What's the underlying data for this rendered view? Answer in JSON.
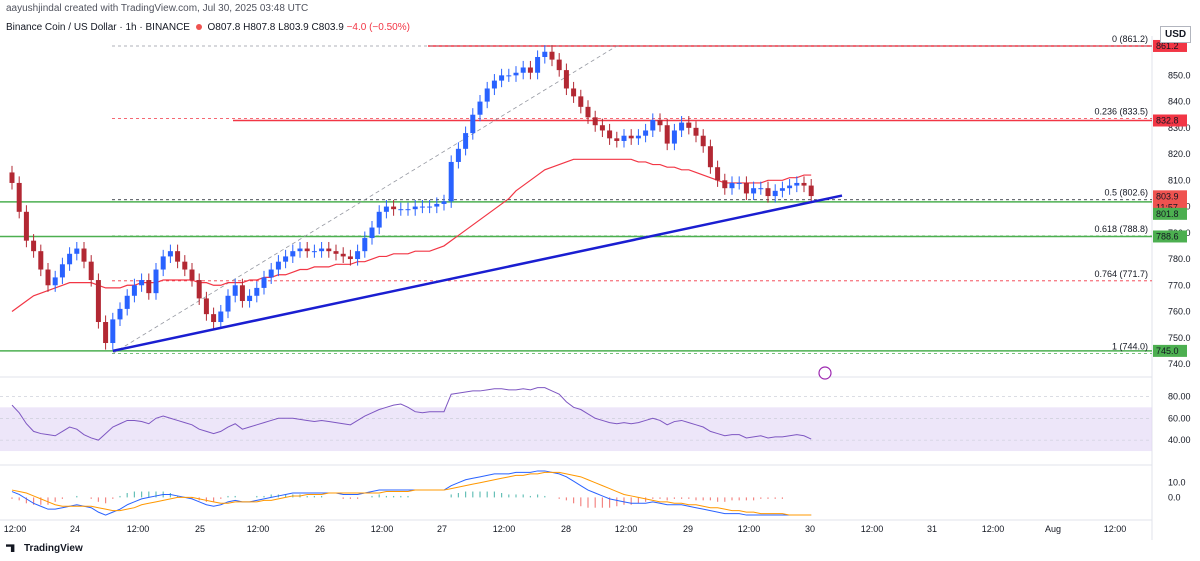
{
  "header": {
    "byline": "aayushjindal created with TradingView.com, Jul 30, 2025 03:48 UTC",
    "symbol": "Binance Coin / US Dollar · 1h · BINANCE",
    "open": "O807.8",
    "high": "H807.8",
    "low": "L803.9",
    "close": "C803.9",
    "change": "−4.0 (−0.50%)"
  },
  "footer": {
    "brand": "TradingView"
  },
  "currency": "USD",
  "colors": {
    "up": "#2962ff",
    "down": "#b22833",
    "ma": "#f23645",
    "trend": "#1a1ed1",
    "support": "#4caf50",
    "resistance": "#f23645",
    "rsi_band": "#e1d5f5",
    "rsi": "#7e57c2"
  },
  "chart_data": {
    "type": "line",
    "instrument": "Binance Coin / US Dollar",
    "timeframe": "1h",
    "ylim": [
      740,
      865
    ],
    "y_ticks": [
      "850.0",
      "840.0",
      "830.0",
      "820.0",
      "810.0",
      "800.0",
      "790.0",
      "780.0",
      "770.0",
      "760.0",
      "750.0",
      "740.0"
    ],
    "x_ticks": [
      "12:00",
      "24",
      "12:00",
      "25",
      "12:00",
      "26",
      "12:00",
      "27",
      "12:00",
      "28",
      "12:00",
      "29",
      "12:00",
      "30",
      "12:00",
      "31",
      "12:00",
      "Aug",
      "12:00"
    ],
    "price_labels": [
      "861.2",
      "832.8",
      "803.9",
      "11:57",
      "801.8",
      "788.6",
      "745.0"
    ],
    "fib_levels": [
      {
        "label": "0 (861.2)",
        "value": 861.2
      },
      {
        "label": "0.236 (833.5)",
        "value": 833.5
      },
      {
        "label": "0.5 (802.6)",
        "value": 802.6
      },
      {
        "label": "0.618 (788.8)",
        "value": 788.8
      },
      {
        "label": "0.764 (771.7)",
        "value": 771.7
      },
      {
        "label": "1 (744.0)",
        "value": 744.0
      }
    ],
    "horizontal_lines": [
      {
        "value": 861.2,
        "color": "red"
      },
      {
        "value": 832.8,
        "color": "red"
      },
      {
        "value": 801.8,
        "color": "green"
      },
      {
        "value": 788.6,
        "color": "green"
      },
      {
        "value": 745.0,
        "color": "green"
      }
    ],
    "trend_line": {
      "from": [
        24.5,
        745.0
      ],
      "to": [
        30.2,
        803.6
      ]
    },
    "price_series": {
      "name": "close",
      "values": [
        809,
        798,
        787,
        783,
        776,
        770,
        773,
        778,
        782,
        784,
        779,
        772,
        756,
        748,
        757,
        761,
        766,
        770,
        772,
        767,
        776,
        781,
        783,
        779,
        776,
        772,
        765,
        759,
        756,
        760,
        766,
        770,
        764,
        766,
        769,
        773,
        776,
        779,
        781,
        783,
        784,
        783,
        783,
        784,
        783,
        782,
        781,
        780,
        783,
        788,
        792,
        798,
        800,
        799,
        799,
        799,
        800,
        800,
        800,
        801,
        802,
        817,
        822,
        828,
        835,
        840,
        845,
        848,
        850,
        850,
        851,
        853,
        851,
        857,
        859,
        856,
        852,
        845,
        842,
        838,
        834,
        831,
        829,
        826,
        825,
        827,
        826,
        827,
        829,
        833,
        831,
        824,
        829,
        832,
        830,
        827,
        823,
        815,
        810,
        807,
        809,
        809,
        805,
        807,
        807,
        804,
        806,
        807,
        808,
        809,
        808,
        804
      ]
    },
    "ma_series": {
      "name": "MA",
      "values": [
        760,
        762,
        764,
        766,
        767,
        768,
        769,
        770,
        771,
        771,
        771,
        771,
        770,
        769,
        769,
        769,
        770,
        770,
        771,
        771,
        771,
        772,
        772,
        772,
        772,
        772,
        771,
        771,
        770,
        770,
        771,
        771,
        771,
        772,
        772,
        773,
        773,
        774,
        774,
        775,
        776,
        776,
        777,
        777,
        777,
        778,
        778,
        778,
        779,
        779,
        780,
        781,
        781,
        782,
        782,
        782,
        783,
        783,
        783,
        784,
        785,
        787,
        789,
        791,
        793,
        795,
        797,
        799,
        801,
        803,
        806,
        808,
        810,
        812,
        814,
        815,
        816,
        817,
        818,
        818,
        818,
        818,
        818,
        818,
        818,
        818,
        818,
        817,
        817,
        816,
        816,
        815,
        815,
        814,
        814,
        813,
        812,
        811,
        810,
        809,
        809,
        809,
        809,
        809,
        809,
        810,
        810,
        810,
        811,
        811,
        812,
        812
      ]
    },
    "rsi": {
      "levels": [
        "80.00",
        "60.00",
        "40.00"
      ],
      "values": [
        72,
        65,
        55,
        48,
        46,
        45,
        44,
        48,
        52,
        50,
        45,
        42,
        40,
        46,
        52,
        55,
        58,
        58,
        57,
        55,
        60,
        62,
        60,
        58,
        56,
        54,
        50,
        48,
        46,
        48,
        52,
        55,
        50,
        52,
        54,
        56,
        58,
        60,
        60,
        60,
        59,
        58,
        57,
        58,
        57,
        56,
        55,
        54,
        58,
        62,
        65,
        68,
        70,
        72,
        73,
        70,
        66,
        65,
        66,
        66,
        66,
        82,
        83,
        84,
        85,
        85,
        86,
        87,
        87,
        86,
        86,
        87,
        86,
        88,
        88,
        85,
        82,
        75,
        70,
        68,
        64,
        60,
        58,
        56,
        55,
        56,
        55,
        56,
        58,
        60,
        58,
        54,
        57,
        58,
        56,
        54,
        52,
        48,
        46,
        44,
        45,
        45,
        42,
        43,
        44,
        42,
        43,
        43,
        44,
        45,
        44,
        41
      ]
    },
    "macd": {
      "levels": [
        "10.0",
        "0.0"
      ],
      "macd_values": [
        4,
        2,
        -1,
        -4,
        -6,
        -8,
        -8,
        -7,
        -6,
        -5,
        -6,
        -7,
        -10,
        -12,
        -10,
        -8,
        -5,
        -3,
        -1,
        0,
        1,
        2,
        2,
        1,
        0,
        -1,
        -3,
        -5,
        -6,
        -5,
        -3,
        -2,
        -3,
        -3,
        -2,
        -1,
        0,
        1,
        2,
        3,
        3,
        3,
        3,
        3,
        3,
        3,
        2,
        2,
        2,
        3,
        4,
        5,
        5,
        5,
        5,
        5,
        5,
        5,
        5,
        5,
        5,
        8,
        10,
        12,
        13,
        14,
        15,
        16,
        16,
        16,
        17,
        17,
        17,
        18,
        18,
        17,
        16,
        14,
        11,
        8,
        5,
        3,
        1,
        -1,
        -2,
        -3,
        -4,
        -4,
        -4,
        -3,
        -4,
        -5,
        -5,
        -5,
        -6,
        -7,
        -8,
        -9,
        -10,
        -11,
        -11,
        -11,
        -12,
        -12,
        -12,
        -12,
        -12,
        -12,
        -12,
        -12,
        -12,
        -12
      ],
      "signal_values": [
        5,
        4,
        3,
        1,
        -1,
        -3,
        -5,
        -6,
        -6,
        -6,
        -6,
        -6,
        -7,
        -8,
        -9,
        -9,
        -8,
        -7,
        -5,
        -4,
        -3,
        -2,
        -1,
        0,
        0,
        0,
        -1,
        -2,
        -3,
        -4,
        -4,
        -3,
        -3,
        -3,
        -3,
        -2,
        -2,
        -1,
        0,
        1,
        1,
        2,
        2,
        2,
        3,
        3,
        3,
        3,
        3,
        3,
        3,
        3,
        4,
        4,
        4,
        4,
        5,
        5,
        5,
        5,
        5,
        6,
        7,
        8,
        9,
        10,
        11,
        12,
        13,
        14,
        15,
        15,
        16,
        16,
        17,
        17,
        17,
        16,
        15,
        14,
        12,
        10,
        8,
        6,
        4,
        2,
        1,
        0,
        -1,
        -2,
        -3,
        -3,
        -4,
        -4,
        -5,
        -5,
        -6,
        -7,
        -7,
        -8,
        -9,
        -9,
        -10,
        -10,
        -11,
        -11,
        -11,
        -11,
        -12,
        -12,
        -12,
        -12
      ]
    }
  }
}
